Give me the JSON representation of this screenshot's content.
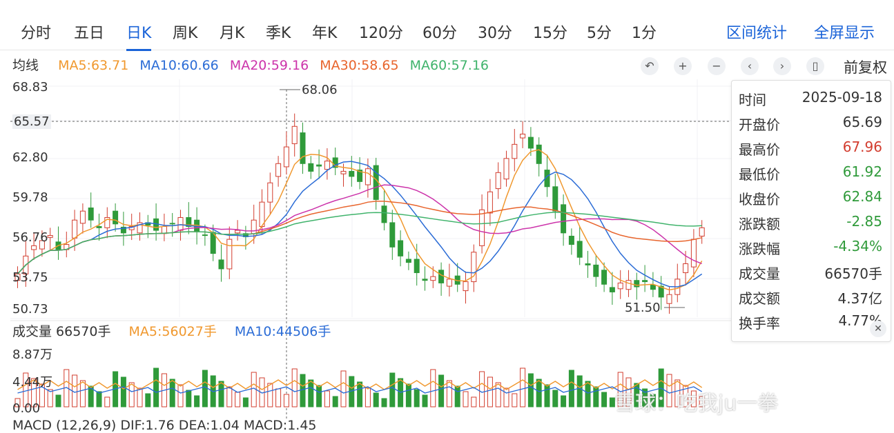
{
  "tabs": [
    "分时",
    "五日",
    "日K",
    "周K",
    "月K",
    "季K",
    "年K",
    "120分",
    "60分",
    "30分",
    "15分",
    "5分",
    "1分"
  ],
  "active_tab": "日K",
  "right_actions": {
    "range_stats": "区间统计",
    "fullscreen": "全屏显示"
  },
  "ma_legend": {
    "title": "均线",
    "items": [
      {
        "label": "MA5:63.71",
        "color": "#f0982e"
      },
      {
        "label": "MA10:60.66",
        "color": "#2b6cd6"
      },
      {
        "label": "MA20:59.16",
        "color": "#cc33aa"
      },
      {
        "label": "MA30:58.65",
        "color": "#e8642c"
      },
      {
        "label": "MA60:57.16",
        "color": "#3fb36b"
      }
    ]
  },
  "controls": {
    "reset_icon": "undo-icon",
    "zoom_in_icon": "plus-icon",
    "zoom_out_icon": "minus-icon",
    "prev_icon": "chevron-left-icon",
    "next_icon": "chevron-right-icon",
    "candle_icon": "candle-icon",
    "adjust_label": "前复权"
  },
  "price_axis": [
    "68.83",
    "65.57",
    "62.80",
    "59.78",
    "56.76",
    "53.75",
    "50.73"
  ],
  "annotations": {
    "high": "68.06",
    "low": "51.50"
  },
  "info": {
    "rows": [
      {
        "k": "时间",
        "v": "2025-09-18",
        "color": "#333"
      },
      {
        "k": "开盘价",
        "v": "65.69",
        "color": "#333"
      },
      {
        "k": "最高价",
        "v": "67.96",
        "color": "#d23c2e"
      },
      {
        "k": "最低价",
        "v": "61.92",
        "color": "#2f9a3a"
      },
      {
        "k": "收盘价",
        "v": "62.84",
        "color": "#2f9a3a"
      },
      {
        "k": "涨跌额",
        "v": "-2.85",
        "color": "#2f9a3a"
      },
      {
        "k": "涨跌幅",
        "v": "-4.34%",
        "color": "#2f9a3a"
      },
      {
        "k": "成交量",
        "v": "66570手",
        "color": "#333"
      },
      {
        "k": "成交额",
        "v": "4.37亿",
        "color": "#333"
      },
      {
        "k": "换手率",
        "v": "4.77%",
        "color": "#333"
      }
    ],
    "close_icon": "close-icon"
  },
  "volume_legend": {
    "title": "成交量 66570手",
    "ma5": "MA5:56027手",
    "ma10": "MA10:44506手"
  },
  "volume_axis": [
    "8.87万",
    "4.44万",
    "0.00"
  ],
  "macd_legend": "MACD (12,26,9)  DIF:1.76  DEA:1.04  MACD:1.45",
  "watermark": "雪球：吃我ju一拳",
  "colors": {
    "up": "#d23c2e",
    "down": "#2f9a3a",
    "accent": "#1a63d8"
  }
}
